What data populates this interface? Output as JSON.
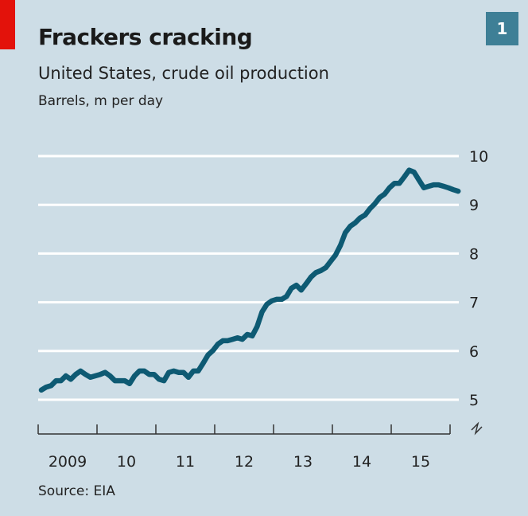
{
  "header": {
    "title": "Frackers cracking",
    "subtitle": "United States, crude oil production",
    "unit": "Barrels, m per day",
    "badge": "1",
    "accent_color": "#e3120b",
    "badge_color": "#3e7f96"
  },
  "footer": {
    "source": "Source: EIA"
  },
  "chart_data": {
    "type": "line",
    "title": "Frackers cracking",
    "subtitle": "United States, crude oil production",
    "ylabel": "Barrels, m per day",
    "xlabel": "",
    "ylim": [
      5,
      10
    ],
    "yticks": [
      "5",
      "6",
      "7",
      "8",
      "9",
      "10"
    ],
    "xticks": [
      "2009",
      "10",
      "11",
      "12",
      "13",
      "14",
      "15"
    ],
    "xlim_years": [
      2009,
      2016
    ],
    "y_axis_break": true,
    "grid": true,
    "line_color": "#0e5a73",
    "series": [
      {
        "name": "Crude oil production",
        "frequency": "monthly",
        "start": "2009-01",
        "values": [
          5.2,
          5.26,
          5.29,
          5.39,
          5.39,
          5.49,
          5.42,
          5.52,
          5.59,
          5.52,
          5.46,
          5.49,
          5.52,
          5.56,
          5.49,
          5.39,
          5.39,
          5.39,
          5.33,
          5.49,
          5.59,
          5.59,
          5.52,
          5.52,
          5.42,
          5.39,
          5.56,
          5.59,
          5.56,
          5.56,
          5.46,
          5.59,
          5.59,
          5.75,
          5.92,
          6.01,
          6.14,
          6.21,
          6.21,
          6.24,
          6.27,
          6.24,
          6.34,
          6.31,
          6.5,
          6.8,
          6.96,
          7.03,
          7.06,
          7.06,
          7.12,
          7.29,
          7.35,
          7.25,
          7.38,
          7.52,
          7.61,
          7.65,
          7.71,
          7.84,
          7.97,
          8.17,
          8.43,
          8.56,
          8.63,
          8.73,
          8.79,
          8.92,
          9.02,
          9.15,
          9.22,
          9.35,
          9.44,
          9.44,
          9.57,
          9.71,
          9.67,
          9.51,
          9.35,
          9.38,
          9.41,
          9.41,
          9.38,
          9.35,
          9.31,
          9.28
        ]
      }
    ]
  }
}
